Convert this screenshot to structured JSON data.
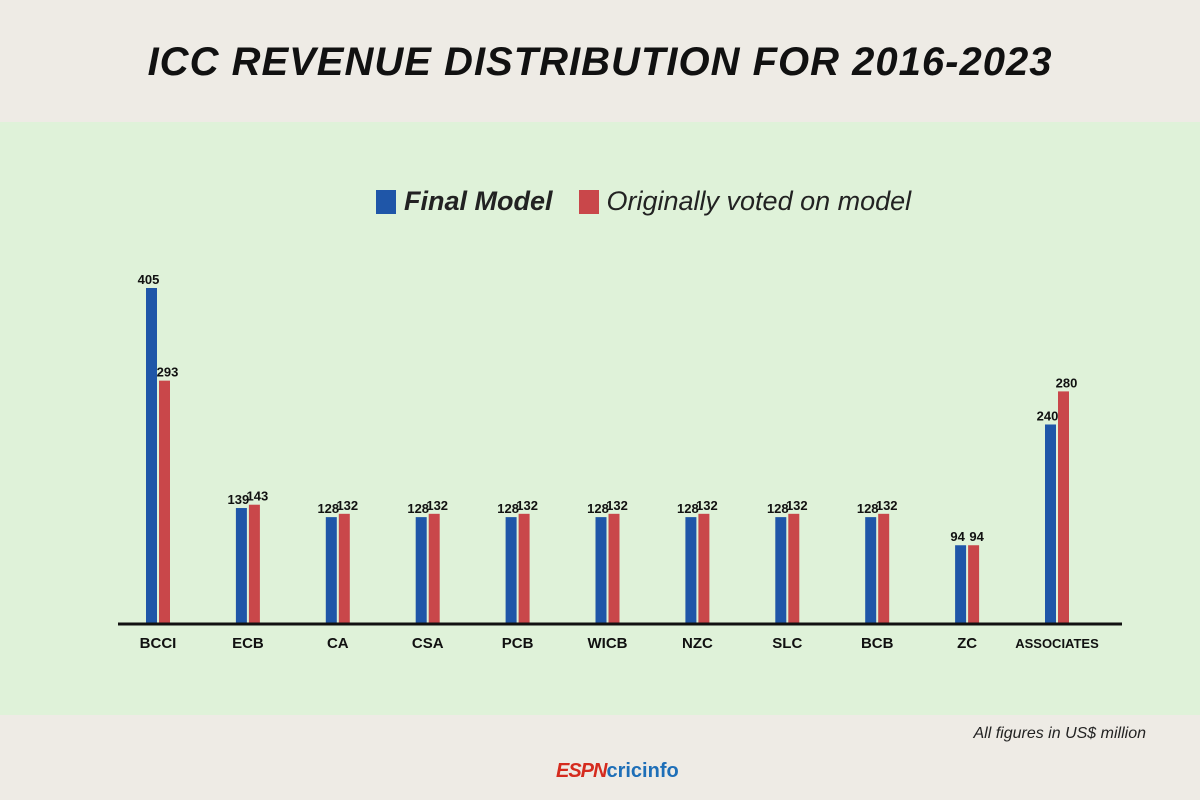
{
  "chart_data": {
    "type": "bar",
    "title": "ICC REVENUE DISTRIBUTION FOR 2016-2023",
    "categories": [
      "BCCI",
      "ECB",
      "CA",
      "CSA",
      "PCB",
      "WICB",
      "NZC",
      "SLC",
      "BCB",
      "ZC",
      "ASSOCIATES"
    ],
    "series": [
      {
        "name": "Final Model",
        "color": "#1f56a8",
        "values": [
          405,
          139,
          128,
          128,
          128,
          128,
          128,
          128,
          128,
          94,
          240
        ]
      },
      {
        "name": "Originally voted on model",
        "color": "#c9474a",
        "values": [
          293,
          143,
          132,
          132,
          132,
          132,
          132,
          132,
          132,
          94,
          280
        ]
      }
    ],
    "ylim": [
      0,
      405
    ],
    "grid": false,
    "legend": "top",
    "note": "All figures in US$ million"
  },
  "brand": {
    "logo_espn": "ESPN",
    "logo_cricinfo": "cricinfo"
  }
}
